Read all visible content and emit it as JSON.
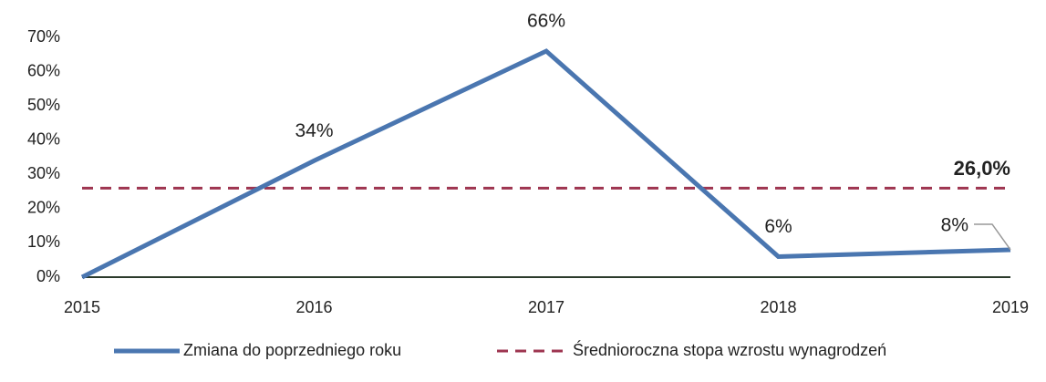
{
  "chart_data": {
    "type": "line",
    "categories": [
      "2015",
      "2016",
      "2017",
      "2018",
      "2019"
    ],
    "series": [
      {
        "name": "Zmiana do poprzedniego roku",
        "color": "#4a76b0",
        "values": [
          0,
          34,
          66,
          6,
          8
        ],
        "value_labels": [
          null,
          "34%",
          "66%",
          "6%",
          "8%"
        ]
      }
    ],
    "reference_line": {
      "name": "Średnioroczna stopa wzrostu wynagrodzeń",
      "value": 26.0,
      "label": "26,0%",
      "color": "#9e3550",
      "style": "dashed"
    },
    "ylim": [
      0,
      70
    ],
    "yticks": [
      {
        "value": 0,
        "label": "0%"
      },
      {
        "value": 10,
        "label": "10%"
      },
      {
        "value": 20,
        "label": "20%"
      },
      {
        "value": 30,
        "label": "30%"
      },
      {
        "value": 40,
        "label": "40%"
      },
      {
        "value": 50,
        "label": "50%"
      },
      {
        "value": 60,
        "label": "60%"
      },
      {
        "value": 70,
        "label": "70%"
      }
    ],
    "grid": false,
    "legend": "bottom"
  }
}
